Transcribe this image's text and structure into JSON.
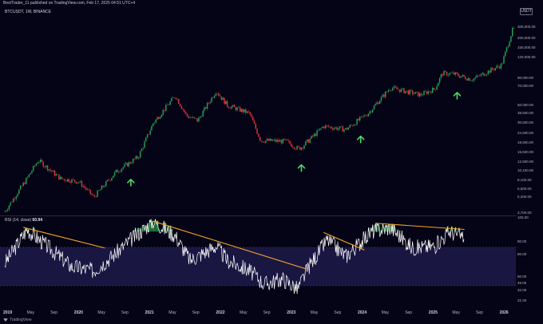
{
  "header": {
    "publish_line": "BestTrader_11 published on TradingView.com, Feb 17, 2025 04:51 UTC+4",
    "symbol_line": "BTCUSDT, 1W, BINANCE",
    "currency": "USDT"
  },
  "rsi_legend": {
    "label": "RSI (14, close)",
    "value": "60.94"
  },
  "footer": {
    "brand": "TradingView"
  },
  "colors": {
    "background": "#050316",
    "up": "#26a65b",
    "down": "#e03a3a",
    "rsi_line": "#ffffff",
    "trendline": "#f5a623",
    "arrow": "#4cd964",
    "rsi_band": "#1a1642"
  },
  "price_axis_labels": [
    "300,000.00",
    "200,000.00",
    "150,000.00",
    "120,000.00",
    "90,000.00",
    "70,000.00",
    "50,000.00",
    "38,500.00",
    "30,500.00",
    "24,500.00",
    "19,500.00",
    "15,500.00",
    "12,500.00",
    "10,100.00",
    "8,100.00",
    "6,500.00",
    "5,200.00",
    "3,700.00"
  ],
  "rsi_axis_labels": [
    "100.00",
    "90.00",
    "80.00",
    "60.00",
    "46.00",
    "32.00",
    "21.00"
  ],
  "time_axis": [
    {
      "t": "2019",
      "year": true
    },
    {
      "t": "May",
      "year": false
    },
    {
      "t": "Sep",
      "year": false
    },
    {
      "t": "2020",
      "year": true
    },
    {
      "t": "May",
      "year": false
    },
    {
      "t": "Sep",
      "year": false
    },
    {
      "t": "2021",
      "year": true
    },
    {
      "t": "May",
      "year": false
    },
    {
      "t": "Sep",
      "year": false
    },
    {
      "t": "2022",
      "year": true
    },
    {
      "t": "May",
      "year": false
    },
    {
      "t": "Sep",
      "year": false
    },
    {
      "t": "2023",
      "year": true
    },
    {
      "t": "May",
      "year": false
    },
    {
      "t": "Sep",
      "year": false
    },
    {
      "t": "2024",
      "year": true
    },
    {
      "t": "May",
      "year": false
    },
    {
      "t": "Sep",
      "year": false
    },
    {
      "t": "2025",
      "year": true
    },
    {
      "t": "May",
      "year": false
    },
    {
      "t": "Sep",
      "year": false
    },
    {
      "t": "2026",
      "year": true
    }
  ],
  "chart_data": [
    {
      "type": "line",
      "title": "BTCUSDT, 1W, BINANCE",
      "scale": "log",
      "x_unit": "year",
      "series": [
        {
          "points": [
            [
              2019.0,
              3700
            ],
            [
              2019.3,
              8100
            ],
            [
              2019.45,
              12500
            ],
            [
              2019.75,
              8100
            ],
            [
              2020.0,
              7500
            ],
            [
              2020.2,
              5200
            ],
            [
              2020.5,
              9500
            ],
            [
              2020.8,
              13500
            ],
            [
              2021.0,
              30000
            ],
            [
              2021.3,
              58000
            ],
            [
              2021.45,
              36000
            ],
            [
              2021.6,
              32000
            ],
            [
              2021.85,
              65000
            ],
            [
              2022.0,
              46000
            ],
            [
              2022.3,
              38000
            ],
            [
              2022.45,
              20000
            ],
            [
              2022.8,
              19500
            ],
            [
              2022.95,
              16500
            ],
            [
              2023.0,
              17000
            ],
            [
              2023.3,
              28000
            ],
            [
              2023.6,
              26000
            ],
            [
              2023.9,
              38000
            ],
            [
              2024.2,
              70000
            ],
            [
              2024.6,
              59000
            ],
            [
              2024.8,
              68000
            ],
            [
              2024.9,
              98000
            ],
            [
              2025.05,
              97000
            ],
            [
              2025.3,
              85000
            ],
            [
              2025.7,
              120000
            ],
            [
              2025.85,
              280000
            ]
          ]
        }
      ],
      "annotations": [
        "up-arrow 2020.7",
        "up-arrow 2023.0",
        "up-arrow 2023.8",
        "up-arrow 2025.1"
      ]
    },
    {
      "type": "line",
      "title": "RSI (14, close)",
      "ylim": [
        21,
        100
      ],
      "bands": [
        32,
        80
      ],
      "series": [
        {
          "points": [
            [
              2019.0,
              55
            ],
            [
              2019.3,
              88
            ],
            [
              2019.6,
              70
            ],
            [
              2019.9,
              52
            ],
            [
              2020.2,
              48
            ],
            [
              2020.45,
              62
            ],
            [
              2020.7,
              78
            ],
            [
              2021.0,
              96
            ],
            [
              2021.3,
              82
            ],
            [
              2021.5,
              58
            ],
            [
              2021.85,
              72
            ],
            [
              2022.0,
              58
            ],
            [
              2022.3,
              48
            ],
            [
              2022.5,
              35
            ],
            [
              2022.75,
              40
            ],
            [
              2022.95,
              30
            ],
            [
              2023.1,
              52
            ],
            [
              2023.35,
              78
            ],
            [
              2023.6,
              62
            ],
            [
              2023.95,
              86
            ],
            [
              2024.2,
              90
            ],
            [
              2024.5,
              70
            ],
            [
              2024.8,
              72
            ],
            [
              2025.0,
              86
            ],
            [
              2025.2,
              80
            ]
          ]
        }
      ],
      "trendlines": [
        [
          [
            2019.25,
            90
          ],
          [
            2020.35,
            70
          ]
        ],
        [
          [
            2021.0,
            96
          ],
          [
            2023.05,
            50
          ]
        ],
        [
          [
            2023.3,
            85
          ],
          [
            2023.85,
            68
          ]
        ],
        [
          [
            2024.0,
            94
          ],
          [
            2025.2,
            88
          ]
        ]
      ]
    }
  ]
}
